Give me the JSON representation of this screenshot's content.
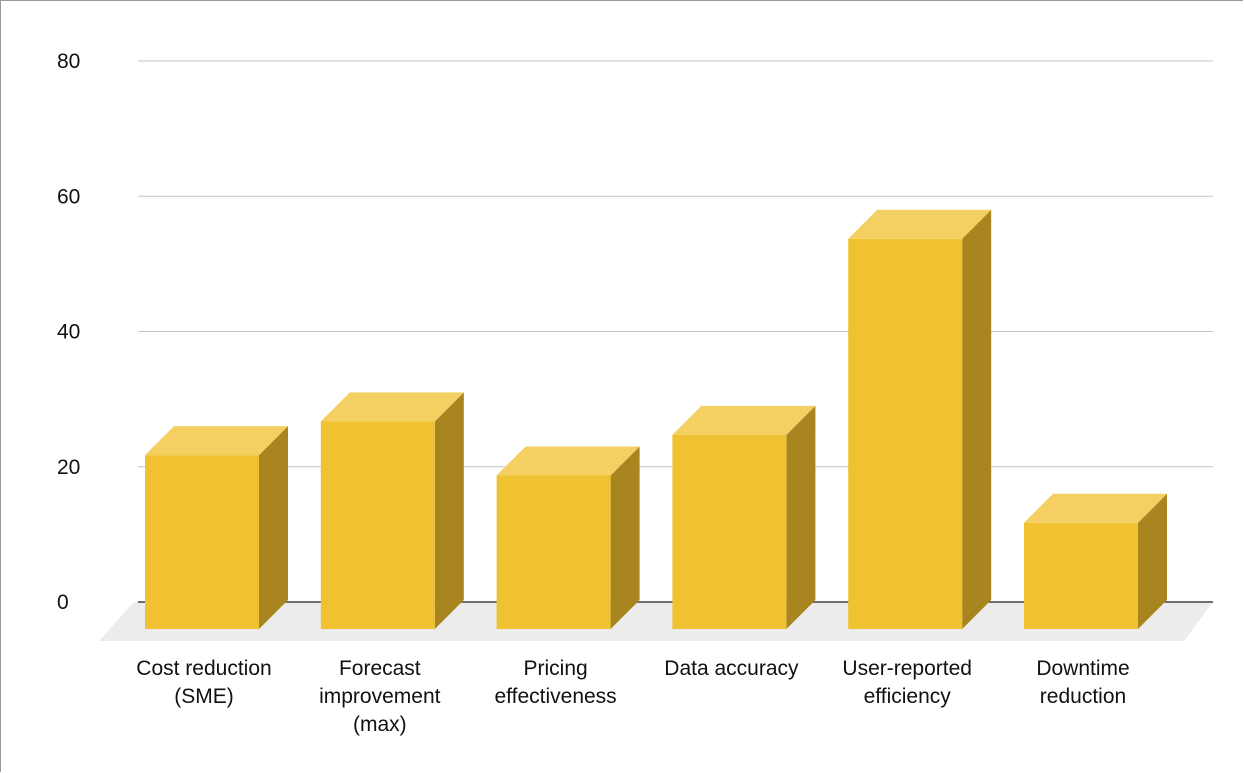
{
  "chart_data": {
    "type": "bar",
    "style": "3d",
    "categories": [
      [
        "Cost reduction",
        "(SME)"
      ],
      [
        "Forecast",
        "improvement",
        "(max)"
      ],
      [
        "Pricing",
        "effectiveness"
      ],
      [
        "Data accuracy"
      ],
      [
        "User-reported",
        "efficiency"
      ],
      [
        "Downtime",
        "reduction"
      ]
    ],
    "values": [
      26,
      31,
      23,
      29,
      58,
      16
    ],
    "title": "",
    "xlabel": "",
    "ylabel": "",
    "ylim": [
      0,
      80
    ],
    "yticks": [
      0,
      20,
      40,
      60,
      80
    ],
    "grid": true,
    "colors": {
      "front": "#f0c231",
      "top": "#f4d062",
      "side": "#a8851f",
      "floor": "#ececec",
      "grid": "#c4c4c4",
      "axis": "#444444"
    }
  }
}
